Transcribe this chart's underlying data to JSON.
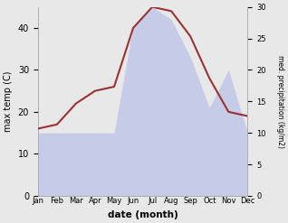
{
  "months": [
    "Jan",
    "Feb",
    "Mar",
    "Apr",
    "May",
    "Jun",
    "Jul",
    "Aug",
    "Sep",
    "Oct",
    "Nov",
    "Dec"
  ],
  "month_indices": [
    1,
    2,
    3,
    4,
    5,
    6,
    7,
    8,
    9,
    10,
    11,
    12
  ],
  "max_temp": [
    16,
    17,
    22,
    25,
    26,
    40,
    45,
    44,
    38,
    28,
    20,
    19
  ],
  "precipitation": [
    10,
    10,
    10,
    10,
    10,
    27,
    30,
    28,
    22,
    14,
    20,
    10
  ],
  "temp_color": "#993333",
  "precip_color": "#aab4e8",
  "precip_alpha": 0.55,
  "xlabel": "date (month)",
  "ylabel_left": "max temp (C)",
  "ylabel_right": "med. precipitation (kg/m2)",
  "ylim_left": [
    0,
    45
  ],
  "ylim_right": [
    0,
    30
  ],
  "yticks_left": [
    0,
    10,
    20,
    30,
    40
  ],
  "yticks_right": [
    0,
    5,
    10,
    15,
    20,
    25,
    30
  ],
  "bg_color": "#e8e8e8",
  "plot_bg_color": "#ffffff"
}
